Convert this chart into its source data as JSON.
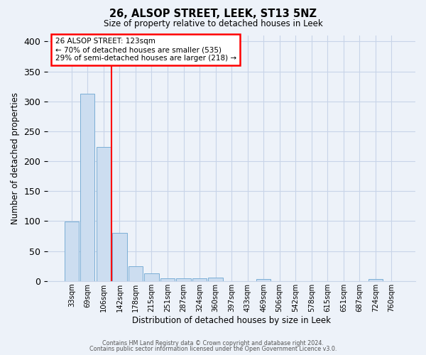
{
  "title": "26, ALSOP STREET, LEEK, ST13 5NZ",
  "subtitle": "Size of property relative to detached houses in Leek",
  "xlabel": "Distribution of detached houses by size in Leek",
  "ylabel": "Number of detached properties",
  "bar_labels": [
    "33sqm",
    "69sqm",
    "106sqm",
    "142sqm",
    "178sqm",
    "215sqm",
    "251sqm",
    "287sqm",
    "324sqm",
    "360sqm",
    "397sqm",
    "433sqm",
    "469sqm",
    "506sqm",
    "542sqm",
    "578sqm",
    "615sqm",
    "651sqm",
    "687sqm",
    "724sqm",
    "760sqm"
  ],
  "bar_values": [
    99,
    313,
    224,
    80,
    25,
    13,
    5,
    4,
    4,
    6,
    0,
    0,
    3,
    0,
    0,
    0,
    0,
    0,
    0,
    3,
    0
  ],
  "bar_color": "#ccddf0",
  "bar_edge_color": "#7aaed6",
  "bar_edge_width": 0.7,
  "grid_color": "#c8d4e8",
  "background_color": "#edf2f9",
  "red_line_x": 2.5,
  "annotation_line1": "26 ALSOP STREET: 123sqm",
  "annotation_line2": "← 70% of detached houses are smaller (535)",
  "annotation_line3": "29% of semi-detached houses are larger (218) →",
  "ylim": [
    0,
    410
  ],
  "yticks": [
    0,
    50,
    100,
    150,
    200,
    250,
    300,
    350,
    400
  ],
  "footer1": "Contains HM Land Registry data © Crown copyright and database right 2024.",
  "footer2": "Contains public sector information licensed under the Open Government Licence v3.0."
}
